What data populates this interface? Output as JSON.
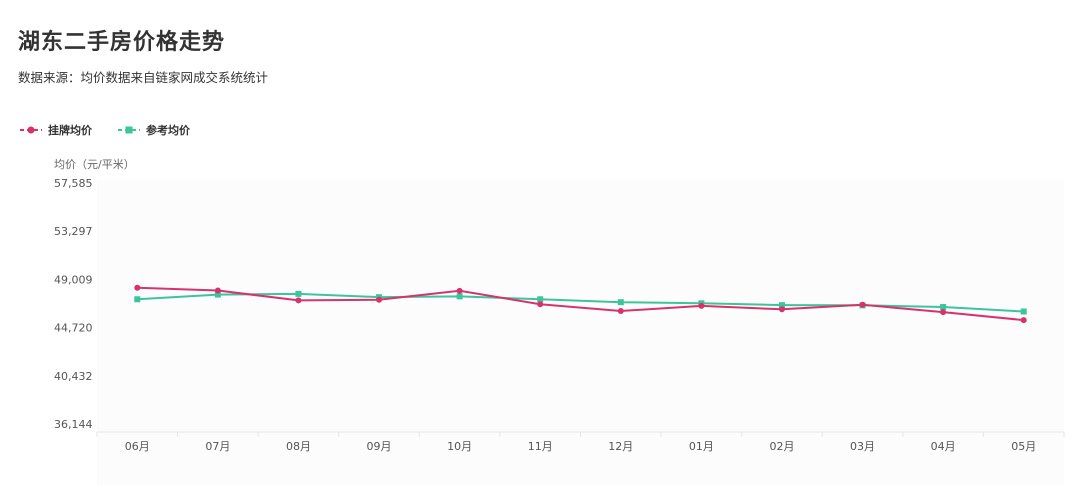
{
  "title": "湖东二手房价格走势",
  "subtitle": "数据来源：均价数据来自链家网成交系统统计",
  "legend": {
    "items": [
      {
        "label": "挂牌均价",
        "color": "#d6336c",
        "marker": "circle"
      },
      {
        "label": "参考均价",
        "color": "#3cc59a",
        "marker": "square"
      }
    ]
  },
  "chart_data": {
    "type": "line",
    "ylabel": "均价（元/平米）",
    "categories": [
      "06月",
      "07月",
      "08月",
      "09月",
      "10月",
      "11月",
      "12月",
      "01月",
      "02月",
      "03月",
      "04月",
      "05月"
    ],
    "yticks": [
      "57,585",
      "53,297",
      "49,009",
      "44,720",
      "40,432",
      "36,144"
    ],
    "ylim": [
      36144,
      57585
    ],
    "grid": false,
    "legend_position": "top-left",
    "series": [
      {
        "name": "挂牌均价",
        "color": "#d6336c",
        "values": [
          48270,
          48020,
          47140,
          47200,
          47990,
          46800,
          46200,
          46650,
          46350,
          46750,
          46100,
          45390
        ]
      },
      {
        "name": "参考均价",
        "color": "#3cc59a",
        "values": [
          47240,
          47660,
          47720,
          47430,
          47500,
          47240,
          46980,
          46880,
          46720,
          46700,
          46550,
          46150
        ]
      }
    ]
  }
}
